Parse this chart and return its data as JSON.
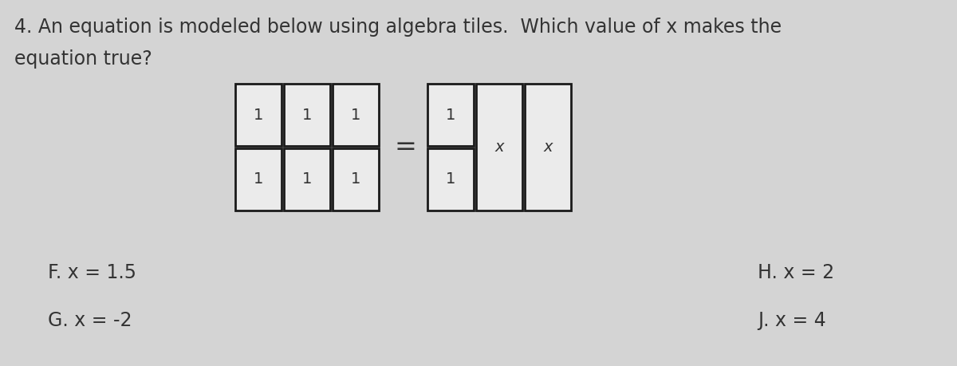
{
  "background_color": "#d4d4d4",
  "question_line1": "4. An equation is modeled below using algebra tiles.  Which value of x makes the",
  "question_line2": "equation true?",
  "answer_F": "F. x = 1.5",
  "answer_G": "G. x = -2",
  "answer_H": "H. x = 2",
  "answer_J": "J. x = 4",
  "tile_bg": "#ebebeb",
  "tile_border": "#1a1a1a",
  "text_color": "#333333",
  "question_fontsize": 17,
  "answer_fontsize": 17,
  "tile_label_fontsize": 14
}
